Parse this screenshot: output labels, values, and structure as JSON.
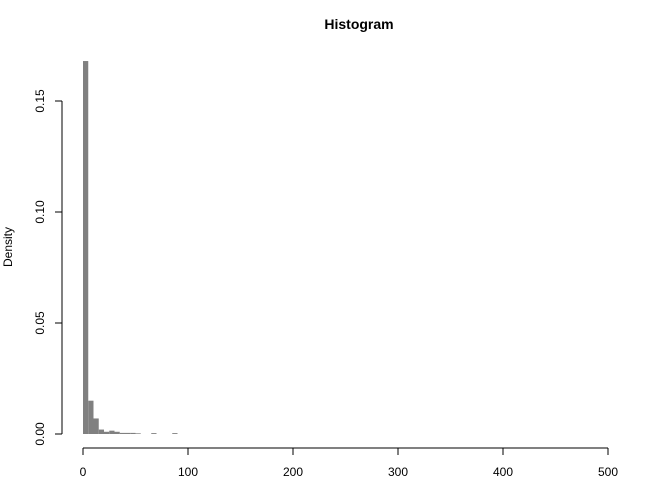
{
  "chart_data": {
    "type": "bar",
    "title": "Histogram",
    "xlabel": "",
    "ylabel": "Density",
    "xlim": [
      0,
      500
    ],
    "ylim": [
      0,
      0.17
    ],
    "x_ticks": [
      0,
      100,
      200,
      300,
      400,
      500
    ],
    "x_tick_labels": [
      "0",
      "100",
      "200",
      "300",
      "400",
      "500"
    ],
    "y_ticks": [
      0.0,
      0.05,
      0.1,
      0.15
    ],
    "y_tick_labels": [
      "0.00",
      "0.05",
      "0.10",
      "0.15"
    ],
    "grid": false,
    "bin_width": 5,
    "bins": [
      {
        "x0": 0,
        "x1": 5,
        "density": 0.168
      },
      {
        "x0": 5,
        "x1": 10,
        "density": 0.015
      },
      {
        "x0": 10,
        "x1": 15,
        "density": 0.007
      },
      {
        "x0": 15,
        "x1": 20,
        "density": 0.002
      },
      {
        "x0": 20,
        "x1": 25,
        "density": 0.001
      },
      {
        "x0": 25,
        "x1": 30,
        "density": 0.0015
      },
      {
        "x0": 30,
        "x1": 35,
        "density": 0.001
      },
      {
        "x0": 35,
        "x1": 40,
        "density": 0.0005
      },
      {
        "x0": 40,
        "x1": 45,
        "density": 0.0005
      },
      {
        "x0": 45,
        "x1": 50,
        "density": 0.0005
      },
      {
        "x0": 50,
        "x1": 55,
        "density": 0.0003
      },
      {
        "x0": 65,
        "x1": 70,
        "density": 0.0004
      },
      {
        "x0": 85,
        "x1": 90,
        "density": 0.0004
      }
    ],
    "bar_color": "#808080"
  }
}
